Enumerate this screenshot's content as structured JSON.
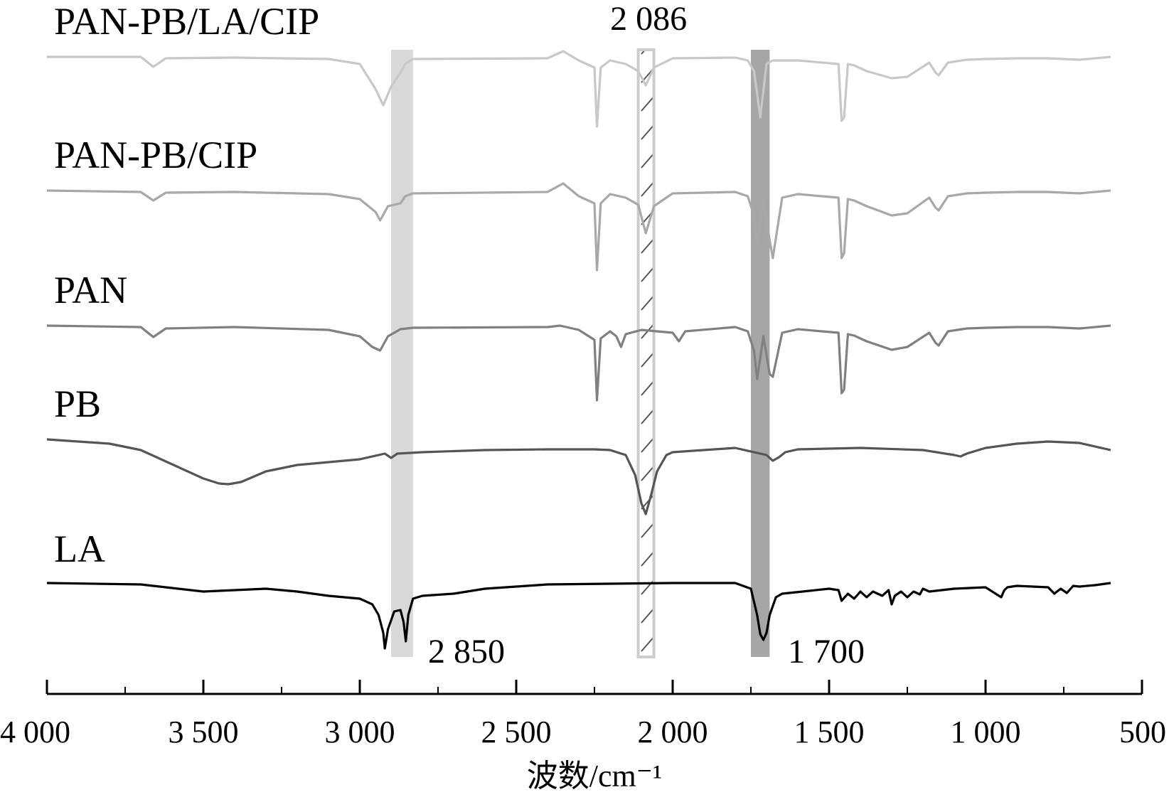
{
  "chart_data": {
    "type": "line",
    "xlabel": "波数/cm⁻¹",
    "xlim": [
      4000,
      500
    ],
    "x_ticks": [
      4000,
      3500,
      3000,
      2500,
      2000,
      1500,
      1000,
      500
    ],
    "x_tick_labels": [
      "4 000",
      "3 500",
      "3 000",
      "2 500",
      "2 000",
      "1 500",
      "1 000",
      "500"
    ],
    "y_axis_shown": false,
    "grid": false,
    "legend": "none",
    "annotations": [
      {
        "text": "2 850",
        "x": 2850
      },
      {
        "text": "2 086",
        "x": 2086
      },
      {
        "text": "1 700",
        "x": 1700
      }
    ],
    "highlight_bands": [
      {
        "from": 2900,
        "to": 2830,
        "style": "solid",
        "color": "#d9d9d9"
      },
      {
        "from": 2110,
        "to": 2060,
        "style": "hatched",
        "color": "#cccccc"
      },
      {
        "from": 1750,
        "to": 1690,
        "style": "solid",
        "color": "#a6a6a6"
      }
    ],
    "series": [
      {
        "name": "PAN-PB/LA/CIP",
        "color": "#c8c8c8",
        "x": [
          4000,
          3700,
          3660,
          3620,
          3400,
          3100,
          3000,
          2950,
          2925,
          2900,
          2870,
          2855,
          2830,
          2400,
          2350,
          2300,
          2250,
          2242,
          2230,
          2200,
          2150,
          2110,
          2086,
          2060,
          2000,
          1800,
          1760,
          1740,
          1720,
          1700,
          1680,
          1600,
          1470,
          1460,
          1452,
          1440,
          1420,
          1380,
          1300,
          1250,
          1180,
          1160,
          1150,
          1120,
          1060,
          1000,
          900,
          800,
          700,
          600
        ],
        "y": [
          0,
          0,
          14,
          2,
          1,
          3,
          10,
          45,
          68,
          42,
          22,
          10,
          3,
          2,
          -8,
          5,
          15,
          98,
          15,
          5,
          10,
          20,
          40,
          15,
          2,
          1,
          5,
          20,
          85,
          10,
          5,
          5,
          10,
          90,
          85,
          10,
          12,
          20,
          30,
          28,
          8,
          22,
          26,
          8,
          4,
          3,
          2,
          2,
          4,
          0
        ]
      },
      {
        "name": "PAN-PB/CIP",
        "color": "#a8a8a8",
        "x": [
          4000,
          3700,
          3660,
          3620,
          3400,
          3100,
          3000,
          2950,
          2935,
          2910,
          2870,
          2855,
          2830,
          2400,
          2350,
          2300,
          2250,
          2242,
          2230,
          2200,
          2150,
          2110,
          2086,
          2060,
          2000,
          1800,
          1760,
          1740,
          1730,
          1710,
          1690,
          1680,
          1650,
          1600,
          1470,
          1460,
          1452,
          1440,
          1420,
          1380,
          1300,
          1250,
          1180,
          1160,
          1150,
          1120,
          1060,
          1000,
          900,
          800,
          700,
          600
        ],
        "y": [
          0,
          2,
          14,
          3,
          2,
          5,
          12,
          30,
          42,
          22,
          18,
          8,
          4,
          2,
          -10,
          8,
          18,
          112,
          18,
          5,
          10,
          20,
          60,
          22,
          4,
          2,
          8,
          35,
          75,
          15,
          70,
          95,
          10,
          5,
          10,
          95,
          88,
          12,
          14,
          22,
          35,
          32,
          10,
          24,
          28,
          8,
          4,
          3,
          2,
          2,
          4,
          0
        ]
      },
      {
        "name": "PAN",
        "color": "#808080",
        "x": [
          4000,
          3700,
          3660,
          3620,
          3400,
          3100,
          3000,
          2960,
          2935,
          2910,
          2870,
          2830,
          2400,
          2360,
          2300,
          2250,
          2242,
          2230,
          2200,
          2180,
          2165,
          2150,
          2100,
          2000,
          1980,
          1960,
          1800,
          1760,
          1740,
          1730,
          1710,
          1690,
          1680,
          1650,
          1600,
          1470,
          1460,
          1452,
          1440,
          1420,
          1380,
          1300,
          1250,
          1180,
          1160,
          1150,
          1120,
          1060,
          1000,
          900,
          800,
          700,
          600
        ],
        "y": [
          0,
          2,
          16,
          4,
          2,
          6,
          15,
          30,
          35,
          15,
          5,
          3,
          2,
          0,
          6,
          20,
          105,
          18,
          8,
          15,
          30,
          12,
          6,
          10,
          22,
          8,
          2,
          8,
          35,
          75,
          15,
          68,
          72,
          10,
          5,
          10,
          95,
          90,
          12,
          14,
          22,
          34,
          30,
          10,
          24,
          28,
          8,
          4,
          3,
          2,
          2,
          4,
          0
        ]
      },
      {
        "name": "PB",
        "color": "#555555",
        "x": [
          4000,
          3800,
          3700,
          3600,
          3500,
          3450,
          3420,
          3380,
          3300,
          3200,
          3000,
          2920,
          2900,
          2880,
          2800,
          2600,
          2400,
          2250,
          2200,
          2150,
          2120,
          2100,
          2086,
          2070,
          2050,
          2020,
          2000,
          1800,
          1700,
          1680,
          1660,
          1640,
          1600,
          1400,
          1200,
          1100,
          1080,
          1060,
          1000,
          900,
          800,
          700,
          600
        ],
        "y": [
          0,
          6,
          15,
          35,
          55,
          62,
          63,
          60,
          45,
          36,
          28,
          20,
          26,
          20,
          18,
          15,
          14,
          14,
          15,
          22,
          50,
          90,
          105,
          80,
          45,
          22,
          18,
          12,
          22,
          30,
          25,
          18,
          14,
          12,
          15,
          22,
          24,
          20,
          12,
          6,
          3,
          5,
          15
        ]
      },
      {
        "name": "LA",
        "color": "#000000",
        "x": [
          4000,
          3700,
          3500,
          3400,
          3300,
          3200,
          3100,
          3050,
          3000,
          2960,
          2940,
          2925,
          2920,
          2910,
          2890,
          2870,
          2860,
          2853,
          2845,
          2830,
          2800,
          2700,
          2600,
          2400,
          2000,
          1800,
          1750,
          1730,
          1720,
          1710,
          1700,
          1690,
          1670,
          1650,
          1500,
          1470,
          1460,
          1440,
          1420,
          1400,
          1380,
          1360,
          1330,
          1310,
          1300,
          1290,
          1270,
          1250,
          1230,
          1210,
          1200,
          1180,
          1100,
          1000,
          950,
          940,
          930,
          900,
          800,
          780,
          760,
          740,
          720,
          700,
          650,
          600
        ],
        "y": [
          0,
          2,
          12,
          10,
          8,
          12,
          18,
          20,
          22,
          30,
          45,
          70,
          92,
          65,
          40,
          38,
          55,
          82,
          45,
          22,
          18,
          15,
          8,
          2,
          0,
          0,
          8,
          45,
          72,
          80,
          70,
          45,
          20,
          15,
          8,
          10,
          25,
          15,
          22,
          12,
          20,
          12,
          18,
          10,
          30,
          18,
          12,
          20,
          12,
          16,
          8,
          12,
          8,
          6,
          20,
          10,
          6,
          4,
          6,
          15,
          8,
          14,
          4,
          5,
          3,
          0
        ]
      }
    ]
  }
}
